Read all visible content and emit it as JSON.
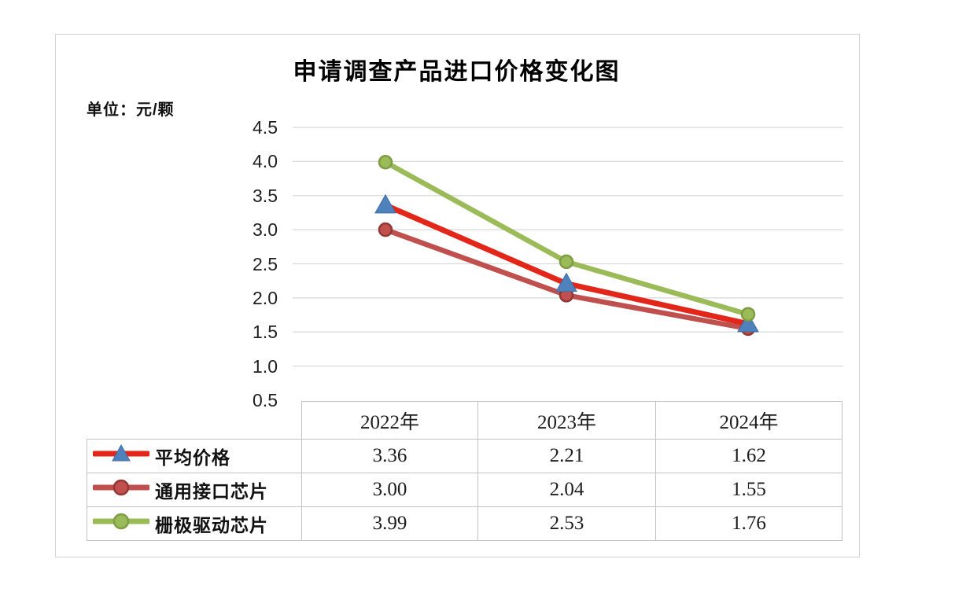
{
  "chart_data": {
    "type": "line",
    "title": "申请调查产品进口价格变化图",
    "unit_label": "单位：元/颗",
    "categories": [
      "2022年",
      "2023年",
      "2024年"
    ],
    "series": [
      {
        "name": "平均价格",
        "values": [
          3.36,
          2.21,
          1.62
        ],
        "line_color": "#e2261a",
        "marker": "triangle",
        "marker_fill": "#4f81bd",
        "marker_stroke": "#3f6da5"
      },
      {
        "name": "通用接口芯片",
        "values": [
          3.0,
          2.04,
          1.55
        ],
        "line_color": "#c0504d",
        "marker": "circle",
        "marker_fill": "#c0504d",
        "marker_stroke": "#943634"
      },
      {
        "name": "栅极驱动芯片",
        "values": [
          3.99,
          2.53,
          1.76
        ],
        "line_color": "#9bbb59",
        "marker": "circle",
        "marker_fill": "#9bbb59",
        "marker_stroke": "#7e9d43"
      }
    ],
    "y_tick_labels": [
      "4.5",
      "4.0",
      "3.5",
      "3.0",
      "2.5",
      "2.0",
      "1.5",
      "1.0",
      "0.5"
    ],
    "ylim": [
      0.5,
      4.5
    ],
    "grid": true,
    "gridline_color": "#d9d9d9",
    "legend_position": "table-left"
  },
  "table": {
    "header": [
      "",
      "2022年",
      "2023年",
      "2024年"
    ],
    "rows": [
      {
        "label": "平均价格",
        "values": [
          "3.36",
          "2.21",
          "1.62"
        ]
      },
      {
        "label": "通用接口芯片",
        "values": [
          "3.00",
          "2.04",
          "1.55"
        ]
      },
      {
        "label": "栅极驱动芯片",
        "values": [
          "3.99",
          "2.53",
          "1.76"
        ]
      }
    ]
  }
}
